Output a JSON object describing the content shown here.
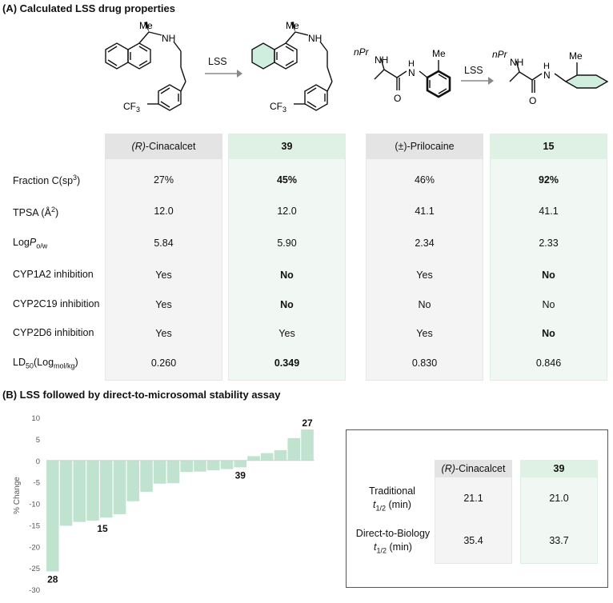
{
  "section_a": {
    "title": "(A) Calculated LSS drug properties",
    "arrow_label_1": "LSS",
    "arrow_label_2": "LSS",
    "struct_labels": {
      "me": "Me",
      "nh": "NH",
      "cf3": "CF3",
      "npr": "nPr",
      "h": "H",
      "n": "N",
      "o": "O"
    },
    "columns": [
      {
        "header": "(R)-Cinacalcet",
        "style": "grey"
      },
      {
        "header": "39",
        "style": "green"
      },
      {
        "header": "(±)-Prilocaine",
        "style": "grey"
      },
      {
        "header": "15",
        "style": "green"
      }
    ],
    "rows": [
      {
        "label": "Fraction C(sp3)",
        "values": [
          "27%",
          "45%",
          "46%",
          "92%"
        ],
        "bold": [
          false,
          true,
          false,
          true
        ]
      },
      {
        "label": "TPSA (Å2)",
        "values": [
          "12.0",
          "12.0",
          "41.1",
          "41.1"
        ],
        "bold": [
          false,
          false,
          false,
          false
        ]
      },
      {
        "label": "LogPo/w",
        "values": [
          "5.84",
          "5.90",
          "2.34",
          "2.33"
        ],
        "bold": [
          false,
          false,
          false,
          false
        ]
      },
      {
        "label": "CYP1A2 inhibition",
        "values": [
          "Yes",
          "No",
          "Yes",
          "No"
        ],
        "bold": [
          false,
          true,
          false,
          true
        ]
      },
      {
        "label": "CYP2C19 inhibition",
        "values": [
          "Yes",
          "No",
          "No",
          "No"
        ],
        "bold": [
          false,
          true,
          false,
          false
        ]
      },
      {
        "label": "CYP2D6 inhibition",
        "values": [
          "Yes",
          "Yes",
          "Yes",
          "No"
        ],
        "bold": [
          false,
          false,
          false,
          true
        ]
      },
      {
        "label": "LD50(Logmol/kg)",
        "values": [
          "0.260",
          "0.349",
          "0.830",
          "0.846"
        ],
        "bold": [
          false,
          true,
          false,
          false
        ]
      }
    ]
  },
  "section_b": {
    "title": "(B) LSS followed by direct-to-microsomal stability assay",
    "table": {
      "headers": [
        "(R)-Cinacalcet",
        "39"
      ],
      "rows": [
        {
          "label_line1": "Traditional",
          "label_line2": "t1/2 (min)",
          "values": [
            "21.1",
            "21.0"
          ]
        },
        {
          "label_line1": "Direct-to-Biology",
          "label_line2": "t1/2 (min)",
          "values": [
            "35.4",
            "33.7"
          ]
        }
      ]
    }
  },
  "chart_data": {
    "type": "bar",
    "ylabel": "% Change",
    "ylim": [
      -30,
      10
    ],
    "yticks": [
      10,
      5,
      0,
      -5,
      -10,
      -15,
      -20,
      -25,
      -30
    ],
    "grid": false,
    "bar_color": "#bfe3cf",
    "values": [
      -25.8,
      -15.2,
      -14.3,
      -14.0,
      -13.3,
      -12.5,
      -9.5,
      -7.3,
      -5.4,
      -5.3,
      -2.7,
      -2.6,
      -2.3,
      -2.0,
      -1.6,
      1.0,
      1.7,
      2.4,
      5.2,
      7.2
    ],
    "annotations": [
      {
        "text": "28",
        "bar_index": 0
      },
      {
        "text": "15",
        "bar_index": 3
      },
      {
        "text": "39",
        "bar_index": 14
      },
      {
        "text": "27",
        "bar_index": 19
      }
    ]
  }
}
